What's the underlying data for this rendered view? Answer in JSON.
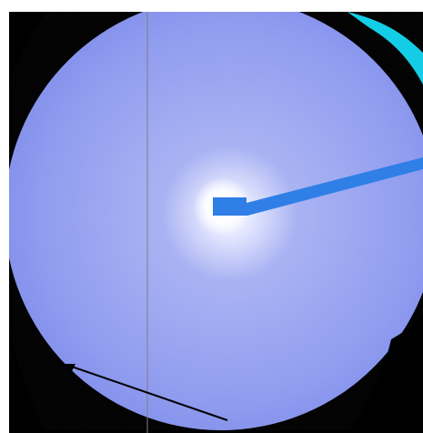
{
  "image": {
    "subject": "diffraction-pattern",
    "colors": {
      "background": "#000000",
      "detector_fill": "#8f9cf0",
      "detector_edge": "#7886ea",
      "beam_center_glow": "#ffffff",
      "beamstop": "#2f7fe7",
      "edge_highlight": "#14d8f2",
      "vertical_line": "#7e7e7e",
      "arrow": "#000000"
    }
  }
}
